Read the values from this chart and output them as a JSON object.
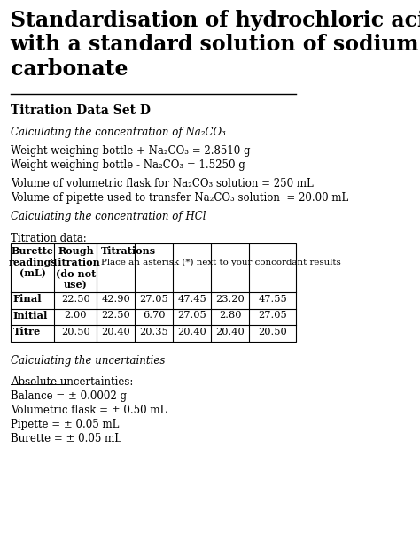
{
  "title": "Standardisation of hydrochloric acid\nwith a standard solution of sodium\ncarbonate",
  "section_heading": "Titration Data Set D",
  "italic_heading1": "Calculating the concentration of Na₂CO₃",
  "line1": "Weight weighing bottle + Na₂CO₃ = 2.8510 g",
  "line2": "Weight weighing bottle - Na₂CO₃ = 1.5250 g",
  "line3": "Volume of volumetric flask for Na₂CO₃ solution = 250 mL",
  "line4": "Volume of pipette used to transfer Na₂CO₃ solution  = 20.00 mL",
  "italic_heading2": "Calculating the concentration of HCl",
  "table_heading": "Titration data:",
  "row_labels": [
    "Final",
    "Initial",
    "Titre"
  ],
  "table_data": [
    [
      "22.50",
      "42.90",
      "27.05",
      "47.45",
      "23.20",
      "47.55"
    ],
    [
      "2.00",
      "22.50",
      "6.70",
      "27.05",
      "2.80",
      "27.05"
    ],
    [
      "20.50",
      "20.40",
      "20.35",
      "20.40",
      "20.40",
      "20.50"
    ]
  ],
  "italic_heading3": "Calculating the uncertainties",
  "uncertainties_heading": "Absolute uncertainties:",
  "uncertainties": [
    "Balance = ± 0.0002 g",
    "Volumetric flask = ± 0.50 mL",
    "Pipette = ± 0.05 mL",
    "Burette = ± 0.05 mL"
  ],
  "bg_color": "#ffffff",
  "text_color": "#000000",
  "title_fontsize": 17,
  "body_fontsize": 8.5,
  "table_fontsize": 8.2
}
